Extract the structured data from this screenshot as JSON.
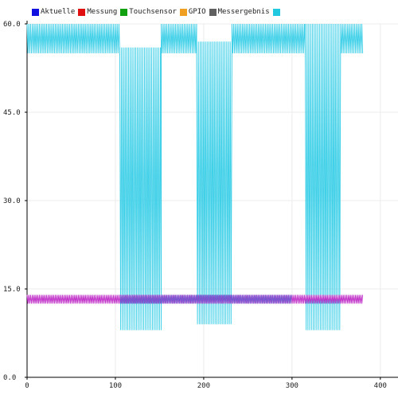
{
  "chart_data": {
    "type": "line",
    "title": "",
    "xlabel": "",
    "ylabel": "",
    "xlim": [
      0,
      420
    ],
    "ylim": [
      0,
      60
    ],
    "grid": true,
    "legend_placement": "top-left",
    "x_ticks": [
      "0",
      "100",
      "200",
      "300",
      "400"
    ],
    "y_ticks": [
      "0.0",
      "15.0",
      "30.0",
      "45.0",
      "60.0"
    ],
    "legend": [
      {
        "label": "Aktuelle",
        "color": "#1010e0"
      },
      {
        "label": "Messung",
        "color": "#e01010"
      },
      {
        "label": "Touchsensor",
        "color": "#10a010"
      },
      {
        "label": "GPIO",
        "color": "#f0a020"
      },
      {
        "label": "Messergebnis",
        "color": "#606060"
      },
      {
        "label": "",
        "color": "#20c8e0"
      }
    ],
    "series": [
      {
        "color": "#40d0e8",
        "x_range": [
          0,
          380
        ],
        "oscillation": "sawtooth between low and high values, period ~2 units",
        "segments": [
          {
            "x": [
              0,
              105
            ],
            "low": 55,
            "high": 60
          },
          {
            "x": [
              105,
              152
            ],
            "low": 8,
            "high": 56
          },
          {
            "x": [
              152,
              192
            ],
            "low": 55,
            "high": 60
          },
          {
            "x": [
              192,
              232
            ],
            "low": 9,
            "high": 57
          },
          {
            "x": [
              232,
              315
            ],
            "low": 55,
            "high": 60
          },
          {
            "x": [
              315,
              355
            ],
            "low": 8,
            "high": 60
          },
          {
            "x": [
              355,
              380
            ],
            "low": 55,
            "high": 60
          }
        ]
      },
      {
        "color": "#c030c8",
        "x_range": [
          0,
          380
        ],
        "oscillation": "sawtooth, period ~2 units",
        "low": 12.5,
        "high": 14
      },
      {
        "color": "#6060d0",
        "x_range": [
          105,
          300
        ],
        "oscillation": "sawtooth, period ~2 units",
        "low": 12.5,
        "high": 14
      }
    ]
  }
}
